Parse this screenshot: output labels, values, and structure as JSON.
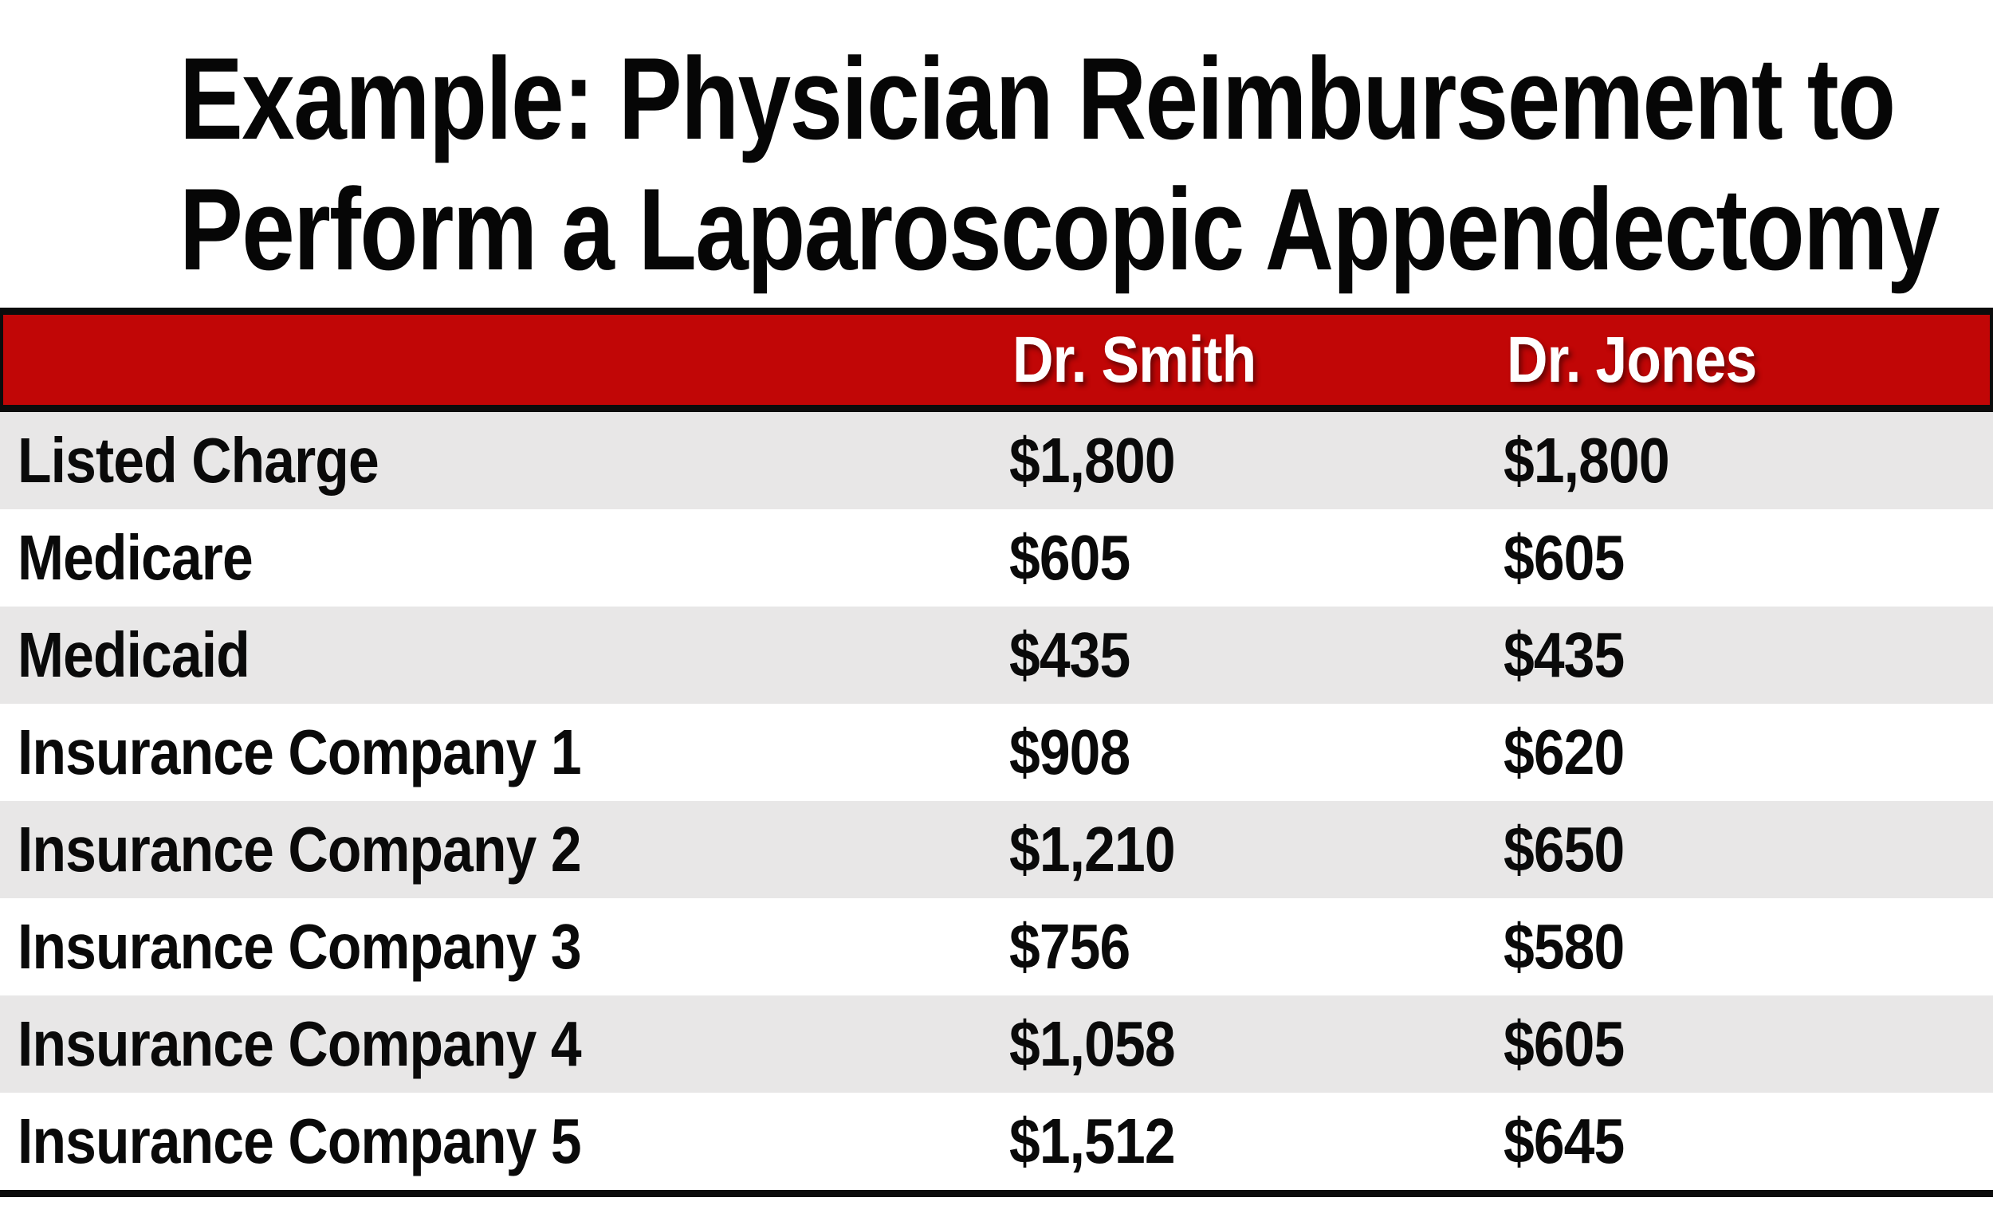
{
  "title": {
    "line1": "Example: Physician Reimbursement to",
    "line2": "Perform a Laparoscopic Appendectomy"
  },
  "table": {
    "header": {
      "label": "",
      "smith": "Dr. Smith",
      "jones": "Dr. Jones"
    },
    "rows": [
      {
        "label": "Listed Charge",
        "smith": "$1,800",
        "jones": "$1,800"
      },
      {
        "label": "Medicare",
        "smith": "$605",
        "jones": "$605"
      },
      {
        "label": "Medicaid",
        "smith": "$435",
        "jones": "$435"
      },
      {
        "label": "Insurance Company 1",
        "smith": "$908",
        "jones": "$620"
      },
      {
        "label": "Insurance Company 2",
        "smith": "$1,210",
        "jones": "$650"
      },
      {
        "label": "Insurance Company 3",
        "smith": "$756",
        "jones": "$580"
      },
      {
        "label": "Insurance Company 4",
        "smith": "$1,058",
        "jones": "$605"
      },
      {
        "label": "Insurance Company 5",
        "smith": "$1,512",
        "jones": "$645"
      }
    ]
  },
  "colors": {
    "header_red": "#C10606",
    "stripe_gray": "#E8E7E7",
    "border_black": "#0C0C0C",
    "header_text": "#FFFFFF",
    "body_text": "#0A0A0A"
  },
  "chart_data": {
    "type": "table",
    "title": "Example: Physician Reimbursement to Perform a Laparoscopic Appendectomy",
    "columns": [
      "",
      "Dr. Smith",
      "Dr. Jones"
    ],
    "rows": [
      [
        "Listed Charge",
        "$1,800",
        "$1,800"
      ],
      [
        "Medicare",
        "$605",
        "$605"
      ],
      [
        "Medicaid",
        "$435",
        "$435"
      ],
      [
        "Insurance Company 1",
        "$908",
        "$620"
      ],
      [
        "Insurance Company 2",
        "$1,210",
        "$650"
      ],
      [
        "Insurance Company 3",
        "$756",
        "$580"
      ],
      [
        "Insurance Company 4",
        "$1,058",
        "$605"
      ],
      [
        "Insurance Company 5",
        "$1,512",
        "$645"
      ]
    ],
    "series": [
      {
        "name": "Dr. Smith",
        "values": [
          1800,
          605,
          435,
          908,
          1210,
          756,
          1058,
          1512
        ]
      },
      {
        "name": "Dr. Jones",
        "values": [
          1800,
          605,
          435,
          620,
          650,
          580,
          605,
          645
        ]
      }
    ],
    "categories": [
      "Listed Charge",
      "Medicare",
      "Medicaid",
      "Insurance Company 1",
      "Insurance Company 2",
      "Insurance Company 3",
      "Insurance Company 4",
      "Insurance Company 5"
    ],
    "layout_hints": {
      "header_fill": "#C10606",
      "striped_rows": true,
      "stripe_fill": "#E8E7E7",
      "grid": "off"
    }
  }
}
